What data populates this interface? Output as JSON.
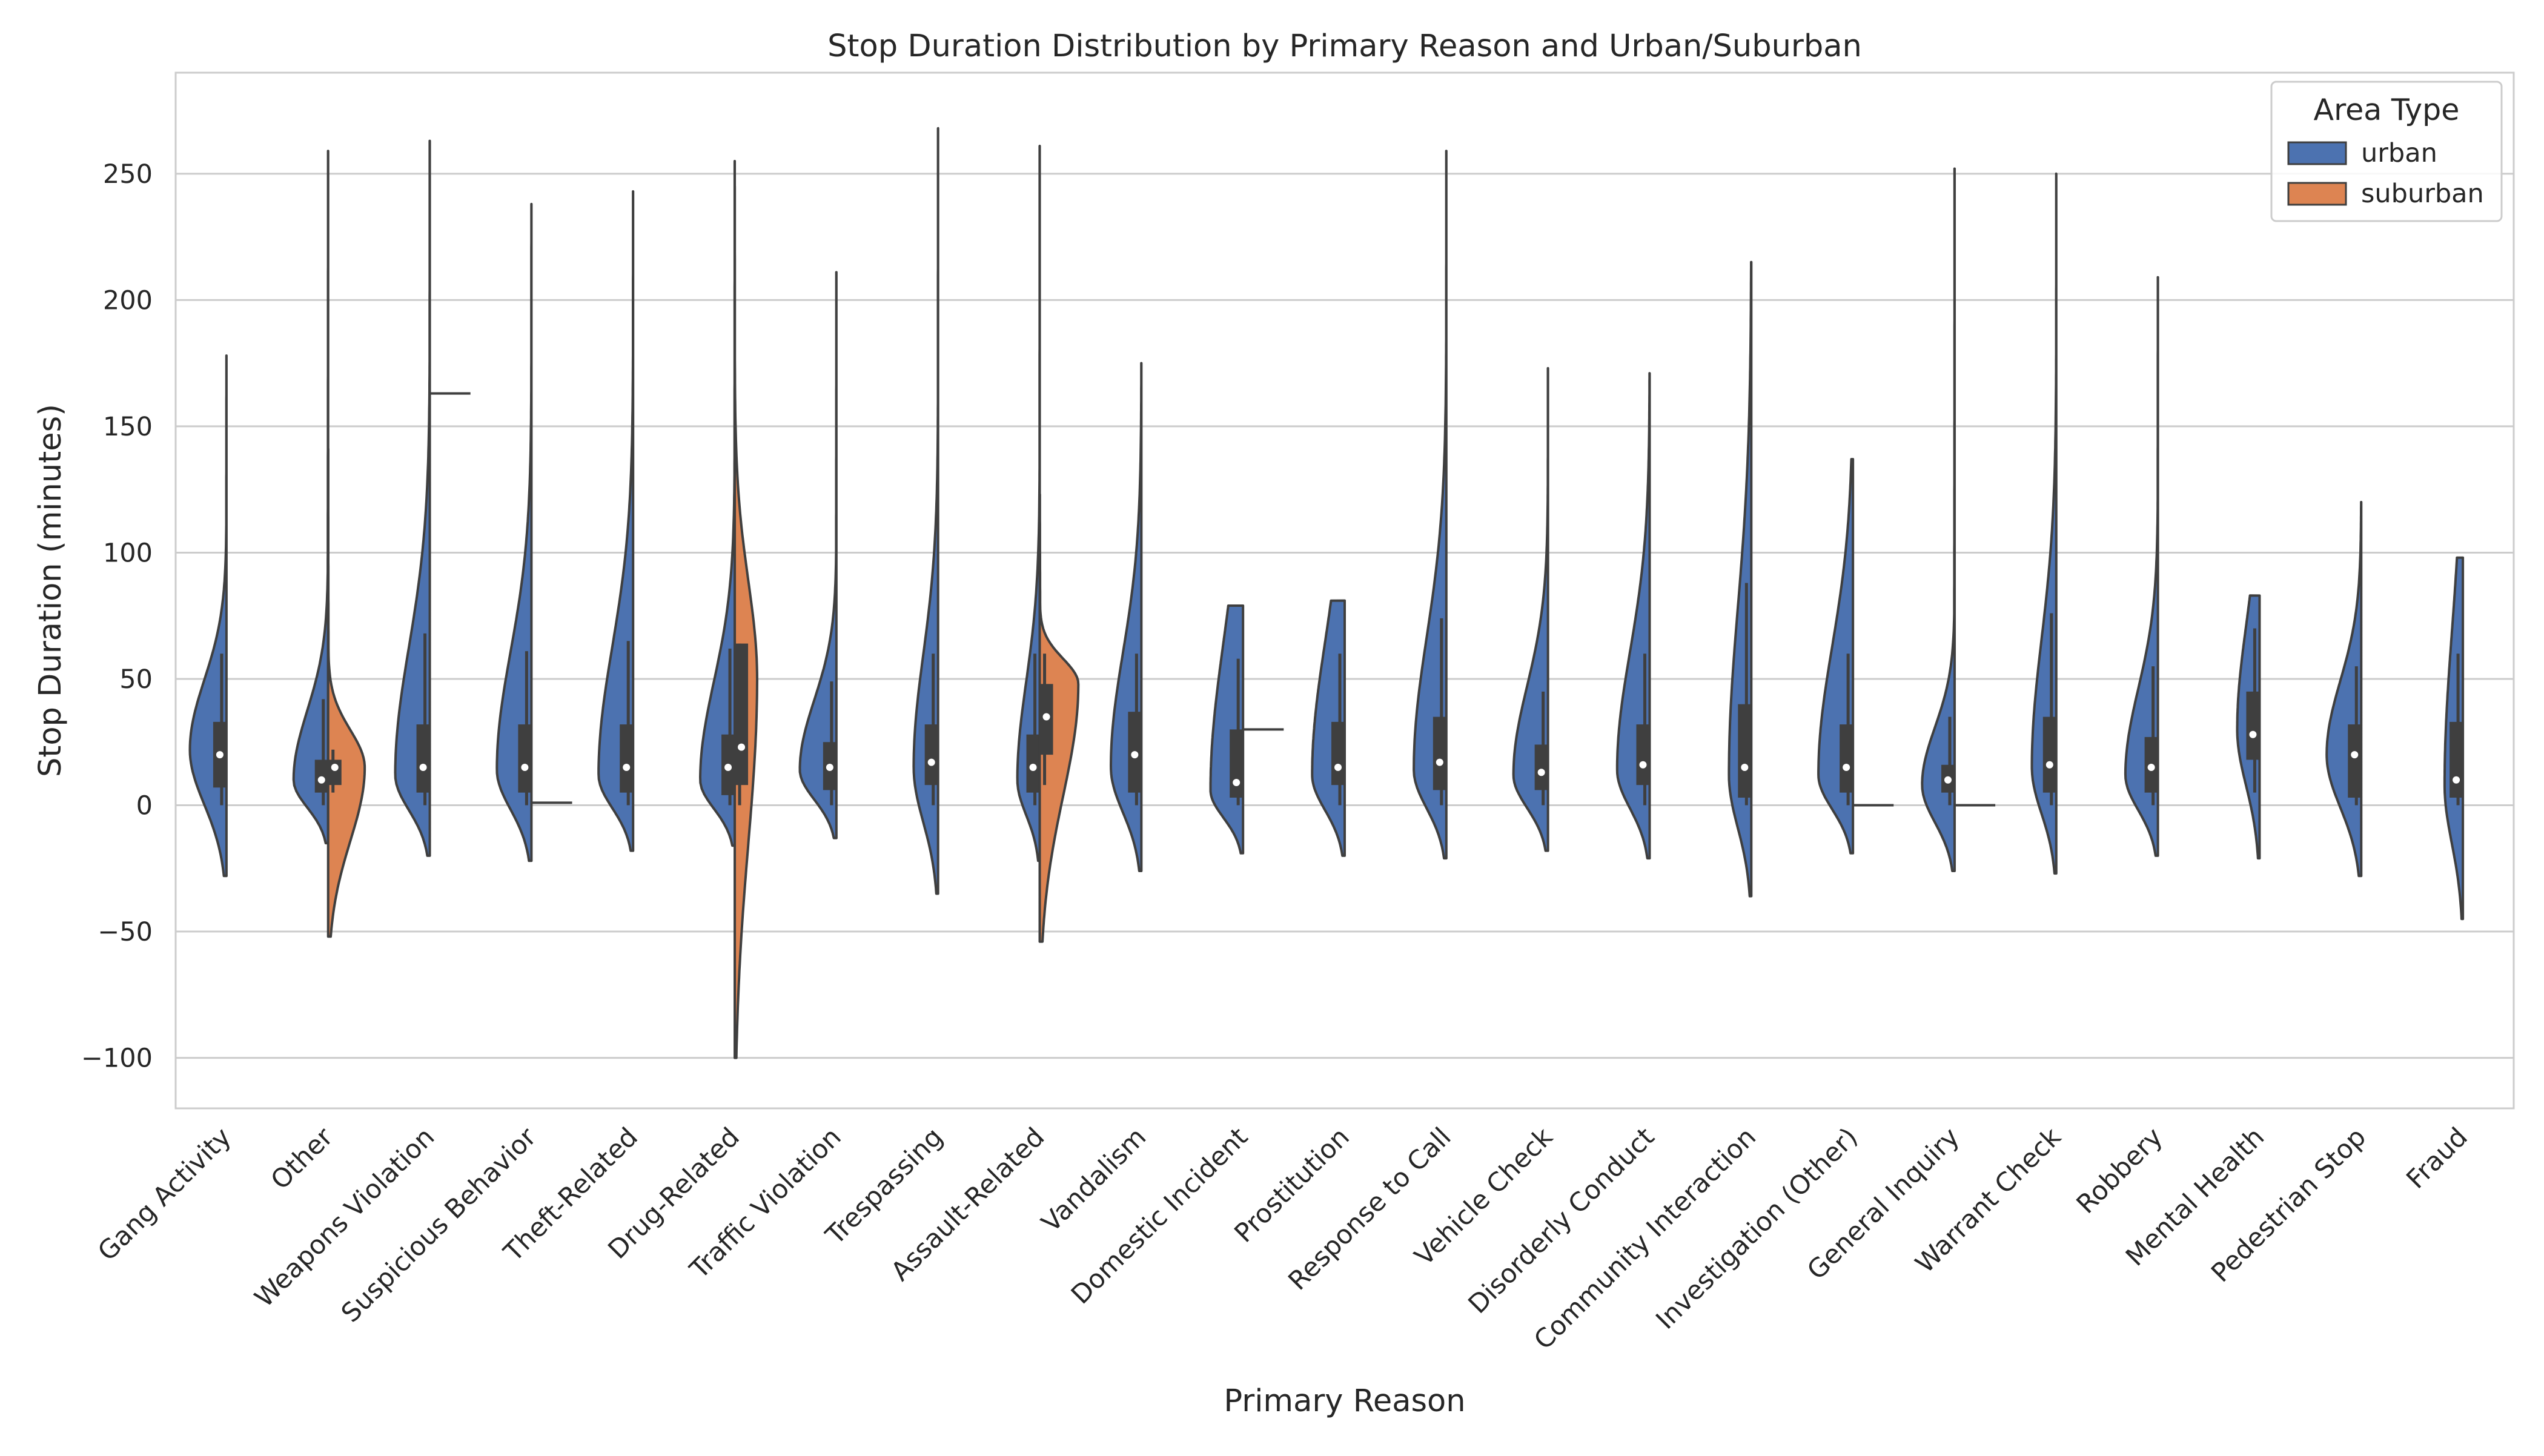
{
  "chart_data": {
    "type": "violin",
    "title": "Stop Duration Distribution by Primary Reason and Urban/Suburban",
    "xlabel": "Primary Reason",
    "ylabel": "Stop Duration (minutes)",
    "ylim": [
      -120,
      290
    ],
    "yticks": [
      -100,
      -50,
      0,
      50,
      100,
      150,
      200,
      250
    ],
    "grid": true,
    "split": true,
    "legend": {
      "title": "Area Type",
      "position": "top-right",
      "entries": [
        {
          "name": "urban",
          "color": "#4c72b0"
        },
        {
          "name": "suburban",
          "color": "#dd8452"
        }
      ]
    },
    "categories": [
      "Gang Activity",
      "Other",
      "Weapons Violation",
      "Suspicious Behavior",
      "Theft-Related",
      "Drug-Related",
      "Traffic Violation",
      "Trespassing",
      "Assault-Related",
      "Vandalism",
      "Domestic Incident",
      "Prostitution",
      "Response to Call",
      "Vehicle Check",
      "Disorderly Conduct",
      "Community Interaction",
      "Investigation (Other)",
      "General Inquiry",
      "Warrant Check",
      "Robbery",
      "Mental Health",
      "Pedestrian Stop",
      "Fraud"
    ],
    "series": [
      {
        "name": "urban",
        "violins": [
          {
            "min": -28,
            "max": 178,
            "q1": 7,
            "median": 20,
            "q3": 33,
            "whisker_lo": 0,
            "whisker_hi": 60,
            "mode": 22,
            "width": 0.9
          },
          {
            "min": -15,
            "max": 259,
            "q1": 5,
            "median": 10,
            "q3": 18,
            "whisker_lo": 0,
            "whisker_hi": 42,
            "mode": 10,
            "width": 0.85
          },
          {
            "min": -20,
            "max": 263,
            "q1": 5,
            "median": 15,
            "q3": 32,
            "whisker_lo": 0,
            "whisker_hi": 68,
            "mode": 12,
            "width": 0.85
          },
          {
            "min": -22,
            "max": 238,
            "q1": 5,
            "median": 15,
            "q3": 32,
            "whisker_lo": 0,
            "whisker_hi": 61,
            "mode": 14,
            "width": 0.85
          },
          {
            "min": -18,
            "max": 243,
            "q1": 5,
            "median": 15,
            "q3": 32,
            "whisker_lo": 0,
            "whisker_hi": 65,
            "mode": 12,
            "width": 0.85
          },
          {
            "min": -16,
            "max": 255,
            "q1": 4,
            "median": 15,
            "q3": 28,
            "whisker_lo": 0,
            "whisker_hi": 62,
            "mode": 10,
            "width": 0.85
          },
          {
            "min": -13,
            "max": 211,
            "q1": 6,
            "median": 15,
            "q3": 25,
            "whisker_lo": 0,
            "whisker_hi": 49,
            "mode": 14,
            "width": 0.9
          },
          {
            "min": -35,
            "max": 268,
            "q1": 8,
            "median": 17,
            "q3": 32,
            "whisker_lo": 0,
            "whisker_hi": 60,
            "mode": 15,
            "width": 0.6
          },
          {
            "min": -22,
            "max": 261,
            "q1": 5,
            "median": 15,
            "q3": 28,
            "whisker_lo": 0,
            "whisker_hi": 60,
            "mode": 10,
            "width": 0.55
          },
          {
            "min": -26,
            "max": 175,
            "q1": 5,
            "median": 20,
            "q3": 37,
            "whisker_lo": 0,
            "whisker_hi": 60,
            "mode": 15,
            "width": 0.75
          },
          {
            "min": -19,
            "max": 79,
            "q1": 3,
            "median": 9,
            "q3": 30,
            "whisker_lo": 0,
            "whisker_hi": 58,
            "mode": 6,
            "width": 0.8
          },
          {
            "min": -20,
            "max": 81,
            "q1": 8,
            "median": 15,
            "q3": 33,
            "whisker_lo": 0,
            "whisker_hi": 60,
            "mode": 12,
            "width": 0.8
          },
          {
            "min": -21,
            "max": 259,
            "q1": 6,
            "median": 17,
            "q3": 35,
            "whisker_lo": 0,
            "whisker_hi": 74,
            "mode": 14,
            "width": 0.8
          },
          {
            "min": -18,
            "max": 173,
            "q1": 6,
            "median": 13,
            "q3": 24,
            "whisker_lo": 0,
            "whisker_hi": 45,
            "mode": 12,
            "width": 0.85
          },
          {
            "min": -21,
            "max": 171,
            "q1": 8,
            "median": 16,
            "q3": 32,
            "whisker_lo": 0,
            "whisker_hi": 60,
            "mode": 14,
            "width": 0.8
          },
          {
            "min": -36,
            "max": 215,
            "q1": 3,
            "median": 15,
            "q3": 40,
            "whisker_lo": 0,
            "whisker_hi": 88,
            "mode": 12,
            "width": 0.55
          },
          {
            "min": -19,
            "max": 137,
            "q1": 5,
            "median": 15,
            "q3": 32,
            "whisker_lo": 0,
            "whisker_hi": 60,
            "mode": 12,
            "width": 0.85
          },
          {
            "min": -26,
            "max": 252,
            "q1": 5,
            "median": 10,
            "q3": 16,
            "whisker_lo": 0,
            "whisker_hi": 35,
            "mode": 8,
            "width": 0.8
          },
          {
            "min": -27,
            "max": 250,
            "q1": 5,
            "median": 16,
            "q3": 35,
            "whisker_lo": 0,
            "whisker_hi": 76,
            "mode": 15,
            "width": 0.6
          },
          {
            "min": -20,
            "max": 209,
            "q1": 5,
            "median": 15,
            "q3": 27,
            "whisker_lo": 0,
            "whisker_hi": 55,
            "mode": 12,
            "width": 0.8
          },
          {
            "min": -21,
            "max": 83,
            "q1": 18,
            "median": 28,
            "q3": 45,
            "whisker_lo": 5,
            "whisker_hi": 70,
            "mode": 30,
            "width": 0.55
          },
          {
            "min": -28,
            "max": 120,
            "q1": 3,
            "median": 20,
            "q3": 32,
            "whisker_lo": 0,
            "whisker_hi": 55,
            "mode": 20,
            "width": 0.85
          },
          {
            "min": -45,
            "max": 98,
            "q1": 3,
            "median": 10,
            "q3": 33,
            "whisker_lo": 0,
            "whisker_hi": 60,
            "mode": 8,
            "width": 0.45
          }
        ]
      },
      {
        "name": "suburban",
        "violins": [
          null,
          {
            "min": -52,
            "max": 141,
            "q1": 8,
            "median": 15,
            "q3": 18,
            "whisker_lo": 5,
            "whisker_hi": 22,
            "mode": 15,
            "width": 0.9
          },
          {
            "single": 163
          },
          {
            "single": 1
          },
          null,
          {
            "min": -100,
            "max": 245,
            "q1": 8,
            "median": 23,
            "q3": 64,
            "whisker_lo": 0,
            "whisker_hi": 64,
            "mode": 50,
            "width": 0.55
          },
          null,
          null,
          {
            "min": -54,
            "max": 123,
            "q1": 20,
            "median": 35,
            "q3": 48,
            "whisker_lo": 8,
            "whisker_hi": 60,
            "mode": 48,
            "width": 0.95
          },
          null,
          {
            "single": 30
          },
          null,
          null,
          null,
          null,
          null,
          {
            "single": 0
          },
          {
            "single": 0
          },
          null,
          null,
          null,
          null,
          null
        ]
      }
    ]
  }
}
